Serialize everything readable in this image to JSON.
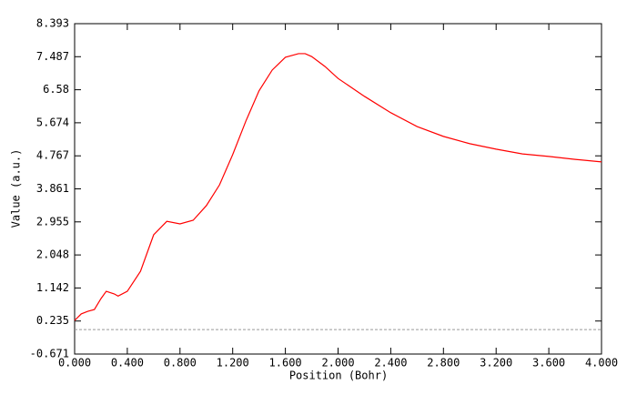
{
  "chart_data": {
    "type": "line",
    "x_label": "Position (Bohr)",
    "y_label": "Value (a.u.)",
    "x": [
      0,
      0.05,
      0.1,
      0.15,
      0.2,
      0.24,
      0.3,
      0.33,
      0.4,
      0.5,
      0.6,
      0.7,
      0.8,
      0.9,
      1.0,
      1.1,
      1.2,
      1.3,
      1.4,
      1.5,
      1.6,
      1.7,
      1.75,
      1.8,
      1.9,
      2.0,
      2.2,
      2.4,
      2.6,
      2.8,
      3.0,
      3.2,
      3.4,
      3.6,
      3.8,
      4.0
    ],
    "series": [
      {
        "name": "Value",
        "color": "#ff0000",
        "values": [
          0.25,
          0.43,
          0.5,
          0.55,
          0.85,
          1.05,
          0.98,
          0.92,
          1.05,
          1.6,
          2.6,
          2.97,
          2.9,
          3.0,
          3.4,
          3.97,
          4.8,
          5.72,
          6.55,
          7.12,
          7.47,
          7.57,
          7.57,
          7.49,
          7.22,
          6.89,
          6.4,
          5.95,
          5.57,
          5.3,
          5.1,
          4.95,
          4.82,
          4.75,
          4.67,
          4.6
        ]
      }
    ],
    "xlim": [
      0,
      4
    ],
    "ylim": [
      -0.671,
      8.393
    ],
    "xticks": [
      {
        "value": 0,
        "label": "0.000"
      },
      {
        "value": 0.4,
        "label": "0.400"
      },
      {
        "value": 0.8,
        "label": "0.800"
      },
      {
        "value": 1.2,
        "label": "1.200"
      },
      {
        "value": 1.6,
        "label": "1.600"
      },
      {
        "value": 2.0,
        "label": "2.000"
      },
      {
        "value": 2.4,
        "label": "2.400"
      },
      {
        "value": 2.8,
        "label": "2.800"
      },
      {
        "value": 3.2,
        "label": "3.200"
      },
      {
        "value": 3.6,
        "label": "3.600"
      },
      {
        "value": 4.0,
        "label": "4.000"
      }
    ],
    "yticks": [
      -0.671,
      0.235,
      1.142,
      2.048,
      2.955,
      3.861,
      4.767,
      5.674,
      6.58,
      7.487,
      8.393
    ],
    "zero_line": true,
    "grid": false
  }
}
